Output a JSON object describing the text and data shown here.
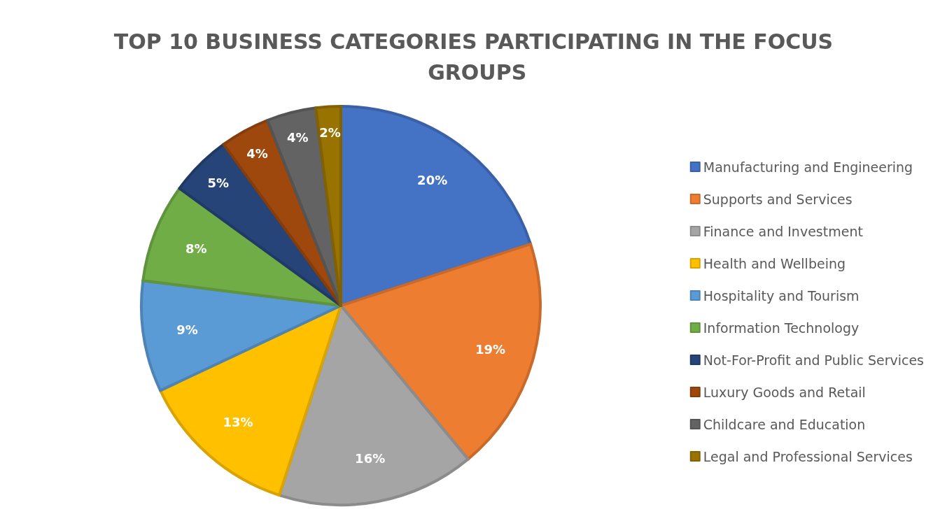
{
  "chart_data": {
    "type": "pie",
    "title": "TOP 10 BUSINESS CATEGORIES PARTICIPATING IN THE FOCUS GROUPS",
    "categories": [
      "Manufacturing and Engineering",
      "Supports and Services",
      "Finance and Investment",
      "Health and Wellbeing",
      "Hospitality and Tourism",
      "Information Technology",
      "Not-For-Profit and Public Services",
      "Luxury Goods and Retail",
      "Childcare and Education",
      "Legal and Professional Services"
    ],
    "values": [
      20,
      19,
      16,
      13,
      9,
      8,
      5,
      4,
      4,
      2
    ],
    "value_labels": [
      "20%",
      "19%",
      "16%",
      "13%",
      "9%",
      "8%",
      "5%",
      "4%",
      "4%",
      "2%"
    ],
    "colors": [
      "#4472c4",
      "#ed7d31",
      "#a5a5a5",
      "#ffc000",
      "#5b9bd5",
      "#70ad47",
      "#264478",
      "#9e480e",
      "#636363",
      "#997300"
    ],
    "legend": "right"
  }
}
